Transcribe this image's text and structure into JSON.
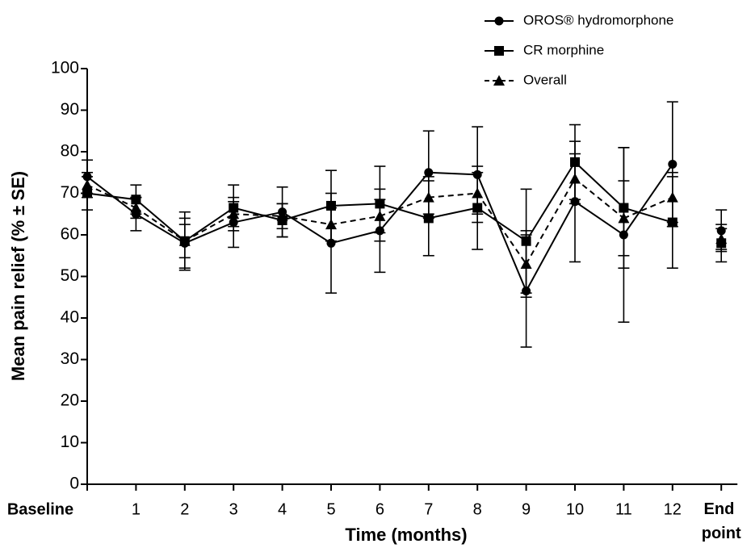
{
  "chart_data": {
    "type": "line",
    "ylabel": "Mean pain relief (% ± SE)",
    "xlabel": "Time (months)",
    "categories": [
      "Baseline",
      "1",
      "2",
      "3",
      "4",
      "5",
      "6",
      "7",
      "8",
      "9",
      "10",
      "11",
      "12",
      "End point"
    ],
    "ylim": [
      0,
      100
    ],
    "yticks": [
      0,
      10,
      20,
      30,
      40,
      50,
      60,
      70,
      80,
      90,
      100
    ],
    "series": [
      {
        "name": "OROS® hydromorphone",
        "color": "#000000",
        "marker": "circle",
        "linestyle": "solid",
        "values": [
          74,
          65,
          58,
          63,
          65.5,
          58,
          61,
          75,
          74.5,
          46.5,
          68,
          60,
          77,
          61
        ],
        "errors": [
          4,
          4,
          6,
          6,
          6,
          12,
          10,
          10,
          11.5,
          13.5,
          14.5,
          21,
          15,
          5
        ]
      },
      {
        "name": "CR morphine",
        "color": "#000000",
        "marker": "square",
        "linestyle": "solid",
        "values": [
          70,
          68.5,
          58.5,
          66.5,
          63.5,
          67,
          67.5,
          64,
          66.5,
          58.5,
          77.5,
          66.5,
          63,
          58
        ],
        "errors": [
          4,
          3.5,
          7,
          5.5,
          4,
          8.5,
          9,
          9,
          10,
          12.5,
          9,
          14.5,
          11,
          4.5
        ]
      },
      {
        "name": "Overall",
        "color": "#000000",
        "marker": "triangle",
        "linestyle": "dashed",
        "values": [
          72,
          66.5,
          58.5,
          65,
          64.5,
          62.5,
          64.5,
          69,
          70,
          53,
          73.5,
          64,
          69,
          59
        ],
        "errors": [
          3,
          2.5,
          4,
          3,
          3,
          4,
          4,
          5,
          5,
          8,
          6,
          9,
          6,
          2.5
        ]
      }
    ]
  }
}
